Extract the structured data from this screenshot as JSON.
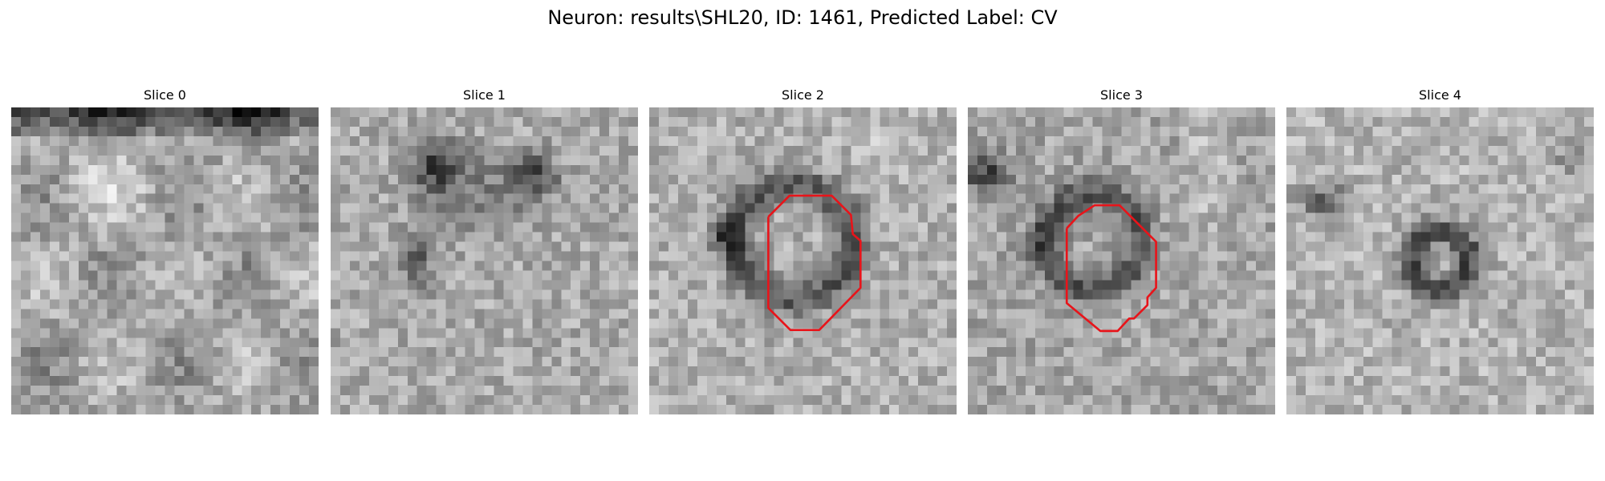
{
  "figure": {
    "title": "Neuron: results\\SHL20, ID: 1461, Predicted Label: CV"
  },
  "slices": [
    {
      "title": "Slice 0",
      "has_contour": false
    },
    {
      "title": "Slice 1",
      "has_contour": false
    },
    {
      "title": "Slice 2",
      "has_contour": true
    },
    {
      "title": "Slice 3",
      "has_contour": true
    },
    {
      "title": "Slice 4",
      "has_contour": false
    }
  ],
  "colors": {
    "contour": "#e8141a",
    "background": "#ffffff"
  },
  "image": {
    "colormap": "grayscale",
    "grid_cells": 32
  }
}
